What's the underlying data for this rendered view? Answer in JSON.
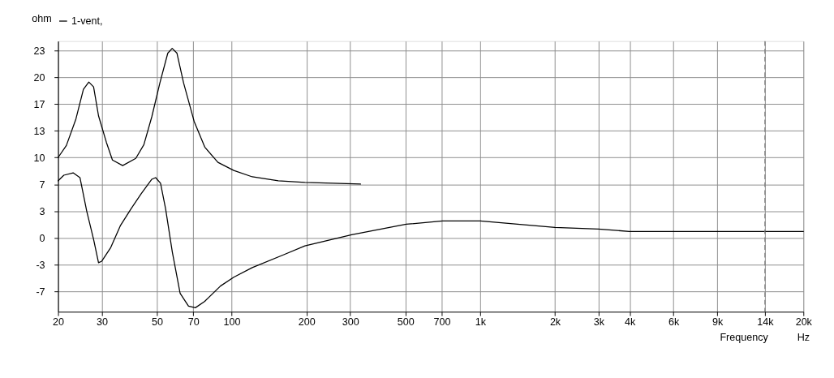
{
  "chart_data": {
    "type": "line",
    "xlabel": "Frequency",
    "ylabel": "ohm",
    "annotations": [
      "Hz"
    ],
    "log": "x",
    "grid": true,
    "legend": "top",
    "marker": "none",
    "line_style": "solid",
    "xlim": [
      20,
      20000
    ],
    "ylim": [
      -9.2,
      24.5
    ],
    "xticks": [
      20,
      30,
      50,
      70,
      100,
      200,
      300,
      500,
      700,
      {
        "value": 1000,
        "label": "1k"
      },
      {
        "value": 2000,
        "label": "2k"
      },
      {
        "value": 3000,
        "label": "3k"
      },
      {
        "value": 4000,
        "label": "4k"
      },
      {
        "value": 6000,
        "label": "6k"
      },
      {
        "value": 9000,
        "label": "9k"
      },
      {
        "value": 14000,
        "label": "14k"
      },
      {
        "value": 20000,
        "label": "20k"
      }
    ],
    "yticks": [
      {
        "value": -6.67,
        "label": "-7"
      },
      {
        "value": -3.33,
        "label": "-3"
      },
      0,
      {
        "value": 3.33,
        "label": "3"
      },
      {
        "value": 6.67,
        "label": "7"
      },
      10,
      {
        "value": 13.33,
        "label": "13"
      },
      {
        "value": 16.67,
        "label": "17"
      },
      20,
      {
        "value": 23.33,
        "label": "23"
      }
    ],
    "ref_lines": [
      {
        "axis": "x",
        "value": 14000,
        "color": "#808080",
        "line_style": "dashed"
      }
    ],
    "series": [
      {
        "name": "1-vent,",
        "color": "#000000",
        "x": [
          20,
          21.6,
          23.6,
          25.3,
          26.6,
          27.8,
          29.1,
          31.3,
          33.1,
          36.4,
          41.1,
          44.3,
          47.7,
          51.4,
          55.3,
          57.6,
          60.2,
          64.0,
          70.6,
          77.9,
          88.0,
          101.9,
          121,
          154,
          197,
          330
        ],
        "values": [
          10.0,
          11.5,
          14.8,
          18.5,
          19.4,
          18.8,
          15.2,
          11.9,
          9.7,
          9.0,
          9.9,
          11.6,
          15.1,
          19.3,
          23.0,
          23.6,
          23.0,
          19.3,
          14.5,
          11.3,
          9.4,
          8.4,
          7.6,
          7.1,
          6.9,
          6.7
        ]
      },
      {
        "color": "#000000",
        "x": [
          20,
          21.1,
          23.0,
          24.5,
          26.1,
          27.8,
          29.1,
          30.0,
          32.6,
          35.6,
          39.3,
          43.2,
          47.7,
          49.4,
          51.7,
          54.2,
          57.7,
          62.0,
          67.0,
          71.4,
          77.9,
          90.1,
          101.9,
          121,
          162,
          197,
          304,
          504,
          706,
          1000,
          2000,
          2990,
          3985,
          20000
        ],
        "values": [
          7.1,
          7.8,
          8.1,
          7.5,
          3.3,
          -0.2,
          -3.1,
          -2.9,
          -1.2,
          1.5,
          3.6,
          5.5,
          7.3,
          7.5,
          6.8,
          3.6,
          -1.8,
          -6.9,
          -8.5,
          -8.7,
          -7.9,
          -6.0,
          -4.9,
          -3.7,
          -2.1,
          -1.0,
          0.4,
          1.7,
          2.1,
          2.1,
          1.3,
          1.1,
          0.8,
          0.8
        ]
      }
    ]
  }
}
